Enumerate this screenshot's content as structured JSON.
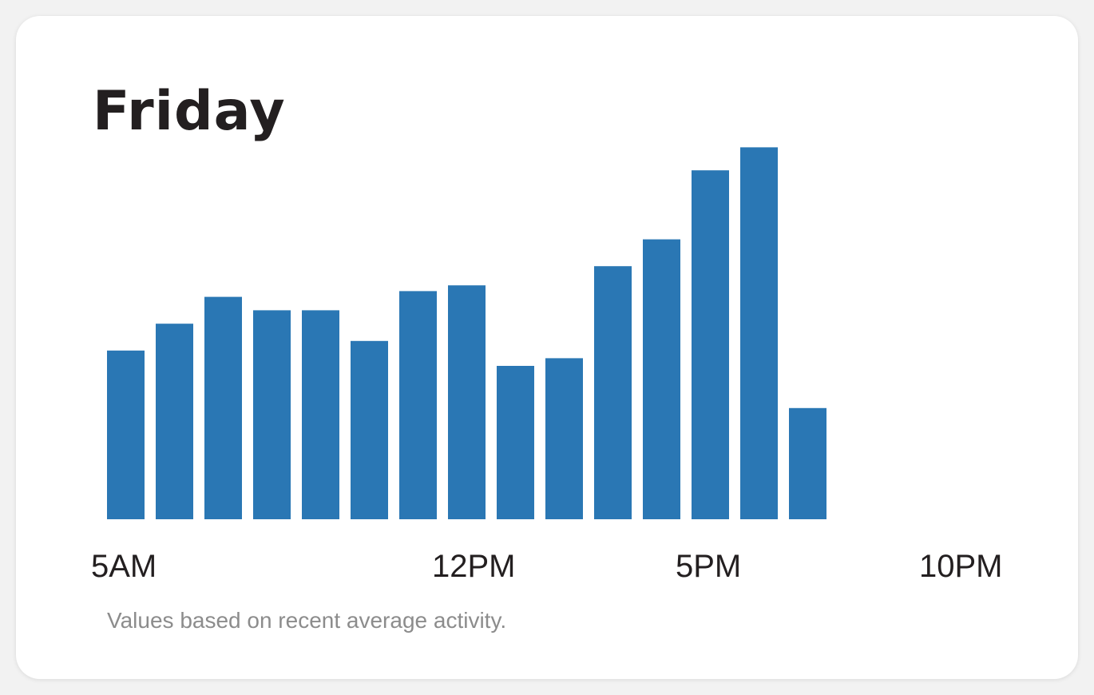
{
  "card": {
    "title": "Friday",
    "caption": "Values based on recent average activity."
  },
  "chart_data": {
    "type": "bar",
    "title": "Friday",
    "xlabel": "",
    "ylabel": "",
    "x_ticks": [
      "5AM",
      "12PM",
      "5PM",
      "10PM"
    ],
    "tick_hours": [
      5,
      12,
      17,
      22
    ],
    "hours": [
      5,
      6,
      7,
      8,
      9,
      10,
      11,
      12,
      13,
      14,
      15,
      16,
      17,
      18,
      19
    ],
    "values": [
      44,
      51,
      58,
      54.5,
      54.5,
      46.5,
      59.5,
      61,
      40,
      42,
      66,
      73,
      91,
      97,
      29
    ],
    "ylim": [
      0,
      100
    ],
    "grid": false,
    "bar_color": "#2a77b4"
  }
}
